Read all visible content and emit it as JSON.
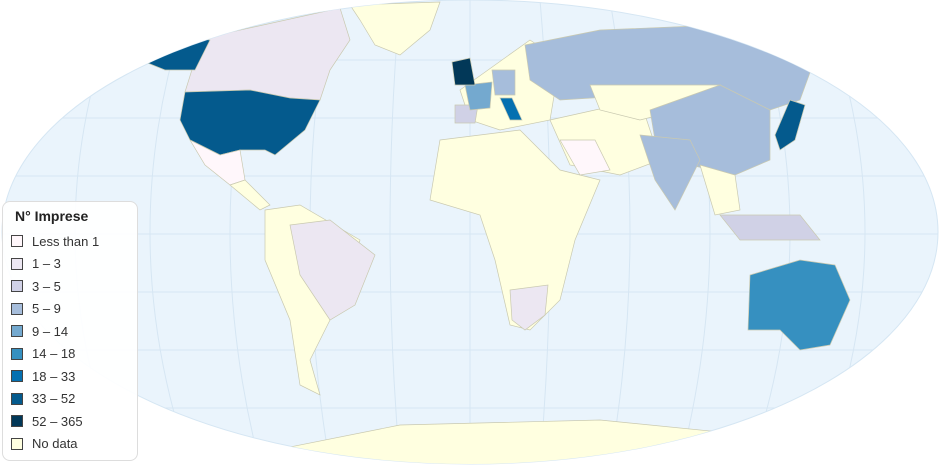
{
  "legend": {
    "title": "N° Imprese",
    "items": [
      {
        "label": "Less than 1",
        "color": "#fff7fb"
      },
      {
        "label": "1 – 3",
        "color": "#ece7f2"
      },
      {
        "label": "3 – 5",
        "color": "#d0d1e6"
      },
      {
        "label": "5 – 9",
        "color": "#a6bddb"
      },
      {
        "label": "9 – 14",
        "color": "#74a9cf"
      },
      {
        "label": "14 – 18",
        "color": "#3690c0"
      },
      {
        "label": "18 – 33",
        "color": "#0570b0"
      },
      {
        "label": "33 – 52",
        "color": "#045a8d"
      },
      {
        "label": "52 – 365",
        "color": "#023858"
      },
      {
        "label": "No data",
        "color": "#ffffe0"
      }
    ]
  },
  "map": {
    "ocean_color": "#eaf4fc",
    "regions": [
      {
        "id": "usa",
        "bin": 7
      },
      {
        "id": "alaska",
        "bin": 7
      },
      {
        "id": "canada",
        "bin": 1
      },
      {
        "id": "mexico",
        "bin": 0
      },
      {
        "id": "brazil",
        "bin": 1
      },
      {
        "id": "uk",
        "bin": 8
      },
      {
        "id": "france",
        "bin": 4
      },
      {
        "id": "germany",
        "bin": 3
      },
      {
        "id": "spain",
        "bin": 2
      },
      {
        "id": "italy",
        "bin": 6
      },
      {
        "id": "russia",
        "bin": 3
      },
      {
        "id": "china",
        "bin": 3
      },
      {
        "id": "india",
        "bin": 3
      },
      {
        "id": "japan",
        "bin": 7
      },
      {
        "id": "australia",
        "bin": 5
      },
      {
        "id": "south-africa",
        "bin": 1
      },
      {
        "id": "saudi-arabia",
        "bin": 0
      },
      {
        "id": "indonesia",
        "bin": 2
      }
    ]
  }
}
